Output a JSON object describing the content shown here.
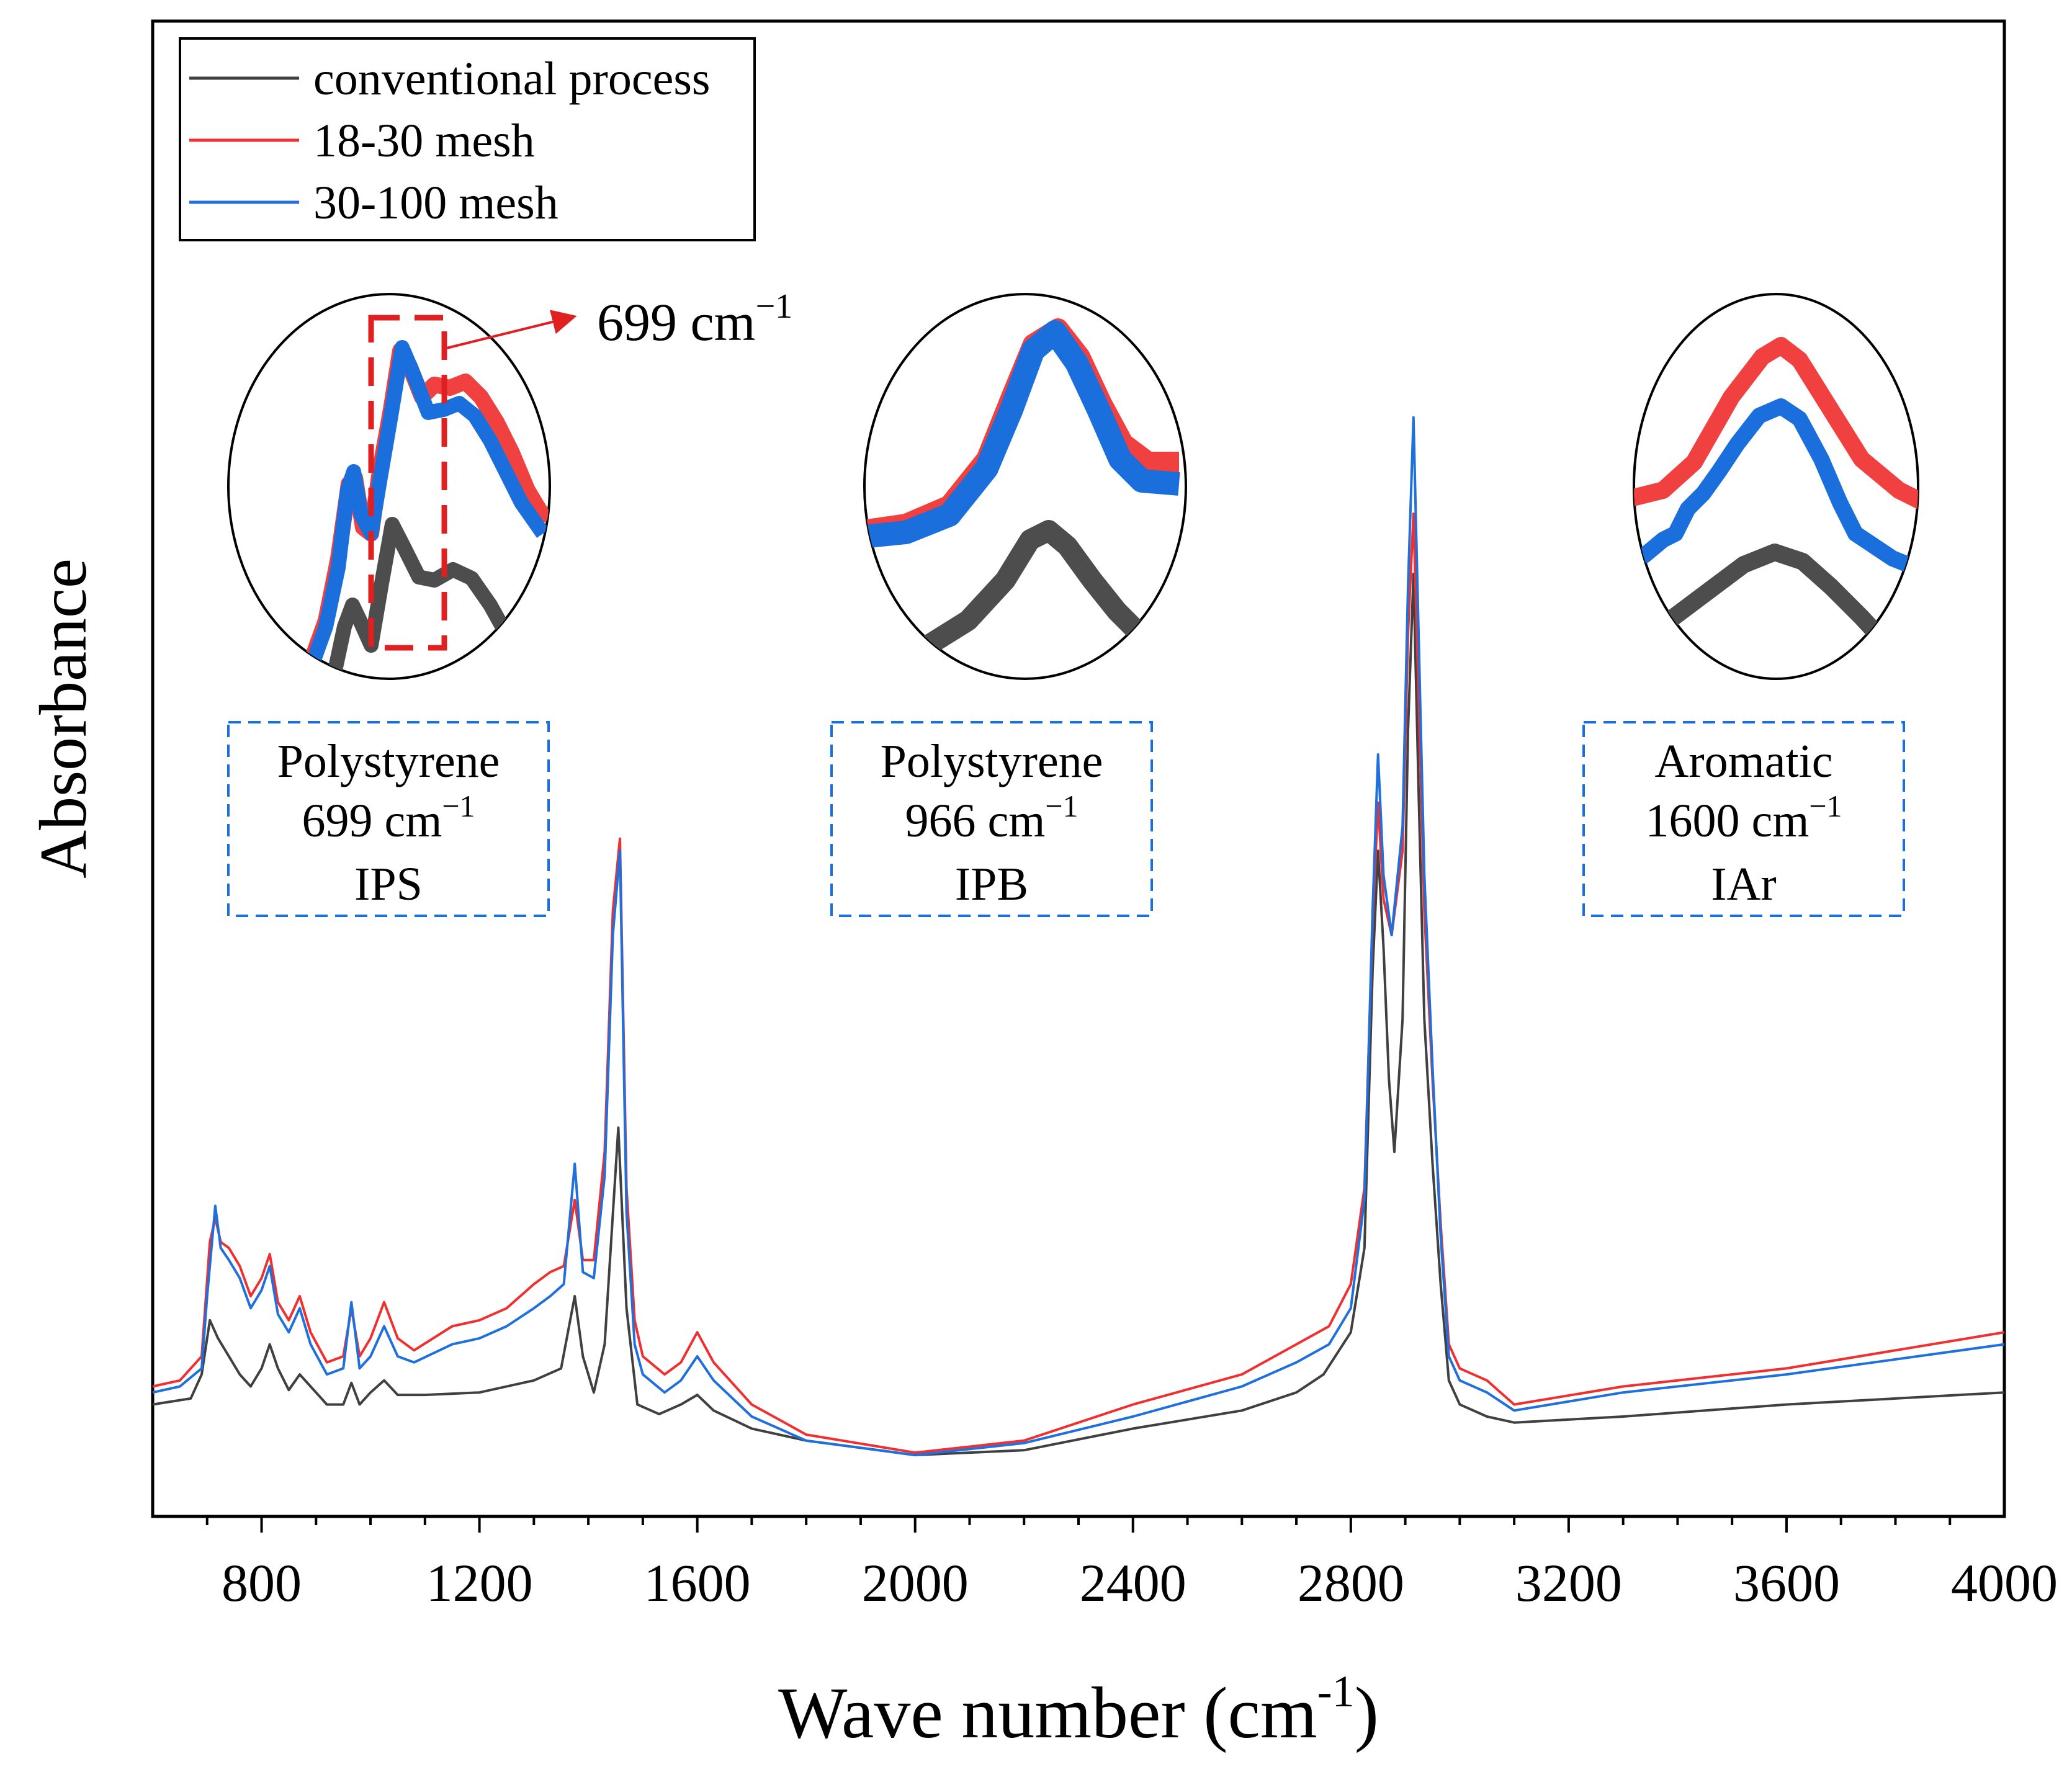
{
  "chart_data": {
    "type": "line",
    "title": "",
    "xlabel": "Wave number (cm",
    "xlabel_sup": "-1",
    "xlabel_close": ")",
    "ylabel": "Absorbance",
    "xlim": [
      600,
      4000
    ],
    "ylim": [
      0,
      1
    ],
    "x_ticks": [
      "800",
      "1200",
      "1600",
      "2000",
      "2400",
      "2800",
      "3200",
      "3600",
      "4000"
    ],
    "x_tick_values": [
      800,
      1200,
      1600,
      2000,
      2400,
      2800,
      3200,
      3600,
      4000
    ],
    "y_ticks_shown": false,
    "grid": false,
    "legend_position": "top-left",
    "series": [
      {
        "name": "conventional process",
        "color": "#404040",
        "x": [
          600,
          670,
          690,
          705,
          720,
          760,
          780,
          800,
          815,
          830,
          850,
          870,
          890,
          920,
          950,
          965,
          980,
          1000,
          1025,
          1050,
          1100,
          1200,
          1300,
          1350,
          1375,
          1390,
          1410,
          1430,
          1455,
          1470,
          1490,
          1530,
          1570,
          1600,
          1630,
          1700,
          1800,
          2000,
          2200,
          2400,
          2600,
          2700,
          2750,
          2800,
          2825,
          2840,
          2850,
          2860,
          2870,
          2880,
          2895,
          2905,
          2915,
          2925,
          2935,
          2950,
          2965,
          2980,
          3000,
          3050,
          3100,
          3300,
          3600,
          4000
        ],
        "values": [
          0.06,
          0.065,
          0.085,
          0.13,
          0.115,
          0.085,
          0.075,
          0.09,
          0.11,
          0.09,
          0.072,
          0.085,
          0.075,
          0.06,
          0.06,
          0.078,
          0.06,
          0.07,
          0.08,
          0.068,
          0.068,
          0.07,
          0.08,
          0.09,
          0.15,
          0.1,
          0.07,
          0.11,
          0.29,
          0.14,
          0.06,
          0.052,
          0.06,
          0.068,
          0.055,
          0.04,
          0.03,
          0.018,
          0.022,
          0.04,
          0.055,
          0.07,
          0.085,
          0.12,
          0.19,
          0.42,
          0.52,
          0.44,
          0.33,
          0.27,
          0.38,
          0.62,
          0.75,
          0.56,
          0.38,
          0.26,
          0.16,
          0.08,
          0.06,
          0.05,
          0.045,
          0.05,
          0.06,
          0.07
        ]
      },
      {
        "name": "18-30 mesh",
        "color": "#f03030",
        "x": [
          600,
          650,
          690,
          705,
          715,
          725,
          740,
          760,
          780,
          800,
          815,
          830,
          850,
          870,
          890,
          920,
          950,
          965,
          980,
          1000,
          1025,
          1050,
          1080,
          1150,
          1200,
          1250,
          1300,
          1330,
          1355,
          1375,
          1390,
          1410,
          1430,
          1445,
          1458,
          1470,
          1485,
          1500,
          1540,
          1570,
          1600,
          1630,
          1700,
          1800,
          2000,
          2200,
          2400,
          2600,
          2700,
          2760,
          2800,
          2825,
          2840,
          2850,
          2860,
          2875,
          2895,
          2905,
          2915,
          2925,
          2935,
          2950,
          2965,
          2980,
          3000,
          3050,
          3100,
          3300,
          3600,
          4000
        ],
        "values": [
          0.075,
          0.08,
          0.1,
          0.195,
          0.215,
          0.195,
          0.19,
          0.175,
          0.15,
          0.165,
          0.185,
          0.145,
          0.13,
          0.15,
          0.12,
          0.095,
          0.1,
          0.14,
          0.1,
          0.115,
          0.145,
          0.115,
          0.105,
          0.125,
          0.13,
          0.14,
          0.16,
          0.17,
          0.175,
          0.23,
          0.18,
          0.18,
          0.27,
          0.47,
          0.53,
          0.24,
          0.13,
          0.1,
          0.085,
          0.095,
          0.12,
          0.095,
          0.06,
          0.035,
          0.02,
          0.03,
          0.06,
          0.085,
          0.11,
          0.125,
          0.16,
          0.24,
          0.46,
          0.56,
          0.48,
          0.45,
          0.52,
          0.7,
          0.8,
          0.64,
          0.47,
          0.33,
          0.21,
          0.11,
          0.09,
          0.08,
          0.06,
          0.075,
          0.09,
          0.12
        ]
      },
      {
        "name": "30-100 mesh",
        "color": "#1f6fdc",
        "x": [
          600,
          650,
          690,
          700,
          715,
          725,
          740,
          760,
          780,
          800,
          815,
          830,
          850,
          870,
          890,
          920,
          950,
          965,
          980,
          1000,
          1025,
          1050,
          1080,
          1150,
          1200,
          1250,
          1300,
          1330,
          1355,
          1375,
          1390,
          1410,
          1430,
          1445,
          1458,
          1470,
          1485,
          1500,
          1540,
          1570,
          1600,
          1630,
          1700,
          1800,
          2000,
          2200,
          2400,
          2600,
          2700,
          2760,
          2800,
          2825,
          2840,
          2850,
          2860,
          2875,
          2895,
          2905,
          2915,
          2925,
          2935,
          2950,
          2965,
          2980,
          3000,
          3050,
          3100,
          3300,
          3600,
          4000
        ],
        "values": [
          0.07,
          0.075,
          0.09,
          0.15,
          0.225,
          0.19,
          0.18,
          0.165,
          0.14,
          0.155,
          0.175,
          0.135,
          0.12,
          0.14,
          0.11,
          0.085,
          0.09,
          0.145,
          0.09,
          0.1,
          0.125,
          0.1,
          0.095,
          0.11,
          0.115,
          0.125,
          0.14,
          0.15,
          0.16,
          0.26,
          0.17,
          0.165,
          0.25,
          0.45,
          0.52,
          0.22,
          0.11,
          0.085,
          0.07,
          0.08,
          0.1,
          0.08,
          0.05,
          0.03,
          0.018,
          0.028,
          0.05,
          0.075,
          0.095,
          0.11,
          0.14,
          0.23,
          0.47,
          0.6,
          0.5,
          0.45,
          0.54,
          0.74,
          0.88,
          0.69,
          0.5,
          0.34,
          0.2,
          0.1,
          0.08,
          0.07,
          0.055,
          0.07,
          0.085,
          0.11
        ]
      }
    ],
    "annotations": {
      "arrow_label": "699 cm",
      "arrow_label_sup": "−1",
      "boxes": [
        {
          "line1": "Polystyrene",
          "line2": "699 cm",
          "line2_sup": "−1",
          "line3": "IPS"
        },
        {
          "line1": "Polystyrene",
          "line2": "966 cm",
          "line2_sup": "−1",
          "line3": "IPB"
        },
        {
          "line1": "Aromatic",
          "line2": "1600 cm",
          "line2_sup": "−1",
          "line3": "IAr"
        }
      ]
    }
  }
}
